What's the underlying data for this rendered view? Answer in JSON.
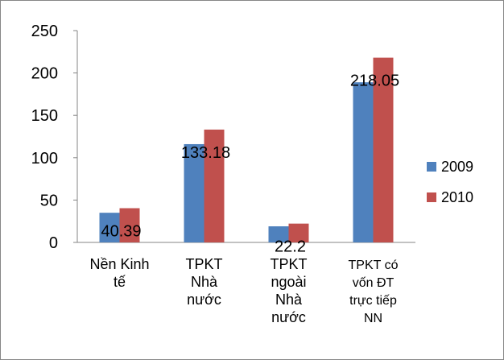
{
  "chart_data": {
    "type": "bar",
    "categories": [
      [
        "Nền Kinh",
        "tế"
      ],
      [
        "TPKT",
        "Nhà",
        "nước"
      ],
      [
        "TPKT",
        "ngoài",
        "Nhà",
        "nước"
      ],
      [
        "TPKT có",
        "vốn ĐT",
        "trực tiếp",
        "NN"
      ]
    ],
    "series": [
      {
        "name": "2009",
        "values": [
          35,
          116,
          19,
          189
        ],
        "color": "#4F81BD"
      },
      {
        "name": "2010",
        "values": [
          40.39,
          133.18,
          22.2,
          218.05
        ],
        "color": "#C0504D"
      }
    ],
    "data_labels": [
      "40.39",
      "133.18",
      "22.2",
      "218.05"
    ],
    "ylim": [
      0,
      250
    ],
    "yticks": [
      "0",
      "50",
      "100",
      "150",
      "200",
      "250"
    ],
    "grid": false,
    "legend": "right"
  }
}
